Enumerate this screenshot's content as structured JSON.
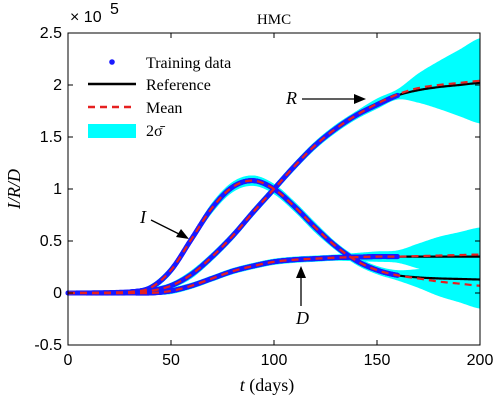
{
  "chart_data": {
    "type": "line",
    "title": "HMC",
    "xlabel": {
      "var": "t",
      "unit": " (days)"
    },
    "ylabel": "I/R/D",
    "y_exponent": {
      "base": "× 10",
      "power": "5"
    },
    "xlim": [
      0,
      200
    ],
    "ylim": [
      -0.5,
      2.5
    ],
    "xticks": [
      0,
      50,
      100,
      150,
      200
    ],
    "yticks": [
      -0.5,
      0,
      0.5,
      1,
      1.5,
      2,
      2.5
    ],
    "grid": false,
    "legend": {
      "position": "top-left",
      "entries": [
        {
          "label": "Training data",
          "style": "blue-dots"
        },
        {
          "label": "Reference",
          "style": "black-solid"
        },
        {
          "label": "Mean",
          "style": "red-dashed"
        },
        {
          "label": "2σ̄",
          "style": "cyan-band"
        }
      ]
    },
    "colors": {
      "training": "#1a1aff",
      "reference": "#000000",
      "mean": "#e62020",
      "band": "#00ffff"
    },
    "units_note": "y values in units of 1e5",
    "training_end": 160,
    "annotations": [
      {
        "text": "I",
        "target_series": "I"
      },
      {
        "text": "R",
        "target_series": "R"
      },
      {
        "text": "D",
        "target_series": "D"
      }
    ],
    "series": [
      {
        "name": "I",
        "x": [
          0,
          30,
          40,
          50,
          60,
          70,
          80,
          90,
          100,
          110,
          120,
          130,
          140,
          150,
          160,
          170,
          180,
          190,
          200
        ],
        "reference": [
          0,
          0.01,
          0.05,
          0.22,
          0.52,
          0.82,
          1.02,
          1.08,
          1.0,
          0.83,
          0.63,
          0.45,
          0.31,
          0.22,
          0.17,
          0.15,
          0.14,
          0.135,
          0.13
        ],
        "mean": [
          0,
          0.01,
          0.05,
          0.22,
          0.52,
          0.82,
          1.02,
          1.08,
          1.0,
          0.83,
          0.63,
          0.45,
          0.31,
          0.22,
          0.17,
          0.14,
          0.11,
          0.09,
          0.07
        ],
        "sigma2": [
          0.02,
          0.02,
          0.03,
          0.04,
          0.04,
          0.05,
          0.05,
          0.05,
          0.05,
          0.05,
          0.05,
          0.04,
          0.04,
          0.04,
          0.05,
          0.09,
          0.14,
          0.18,
          0.22
        ]
      },
      {
        "name": "R",
        "x": [
          0,
          30,
          40,
          50,
          60,
          70,
          80,
          90,
          100,
          110,
          120,
          130,
          140,
          150,
          160,
          170,
          180,
          190,
          200
        ],
        "reference": [
          0,
          0.0,
          0.02,
          0.07,
          0.18,
          0.35,
          0.55,
          0.78,
          1.0,
          1.22,
          1.42,
          1.58,
          1.71,
          1.81,
          1.9,
          1.95,
          1.98,
          2.0,
          2.02
        ],
        "mean": [
          0,
          0.0,
          0.02,
          0.07,
          0.18,
          0.35,
          0.55,
          0.78,
          1.0,
          1.22,
          1.42,
          1.58,
          1.71,
          1.82,
          1.91,
          1.97,
          2.0,
          2.02,
          2.04
        ],
        "sigma2": [
          0.02,
          0.02,
          0.03,
          0.03,
          0.04,
          0.04,
          0.04,
          0.04,
          0.04,
          0.04,
          0.04,
          0.04,
          0.04,
          0.05,
          0.05,
          0.14,
          0.23,
          0.32,
          0.41
        ]
      },
      {
        "name": "D",
        "x": [
          0,
          30,
          40,
          50,
          60,
          70,
          80,
          90,
          100,
          110,
          120,
          130,
          140,
          150,
          160,
          170,
          180,
          190,
          200
        ],
        "reference": [
          0,
          0.0,
          0.0,
          0.02,
          0.07,
          0.14,
          0.21,
          0.26,
          0.3,
          0.32,
          0.33,
          0.34,
          0.345,
          0.35,
          0.35,
          0.35,
          0.35,
          0.35,
          0.35
        ],
        "mean": [
          0,
          0.0,
          0.0,
          0.02,
          0.07,
          0.14,
          0.21,
          0.26,
          0.3,
          0.32,
          0.33,
          0.34,
          0.345,
          0.35,
          0.35,
          0.355,
          0.36,
          0.365,
          0.37
        ],
        "sigma2": [
          0.02,
          0.02,
          0.02,
          0.03,
          0.03,
          0.03,
          0.03,
          0.03,
          0.03,
          0.03,
          0.03,
          0.03,
          0.04,
          0.05,
          0.06,
          0.12,
          0.18,
          0.22,
          0.26
        ]
      }
    ]
  }
}
